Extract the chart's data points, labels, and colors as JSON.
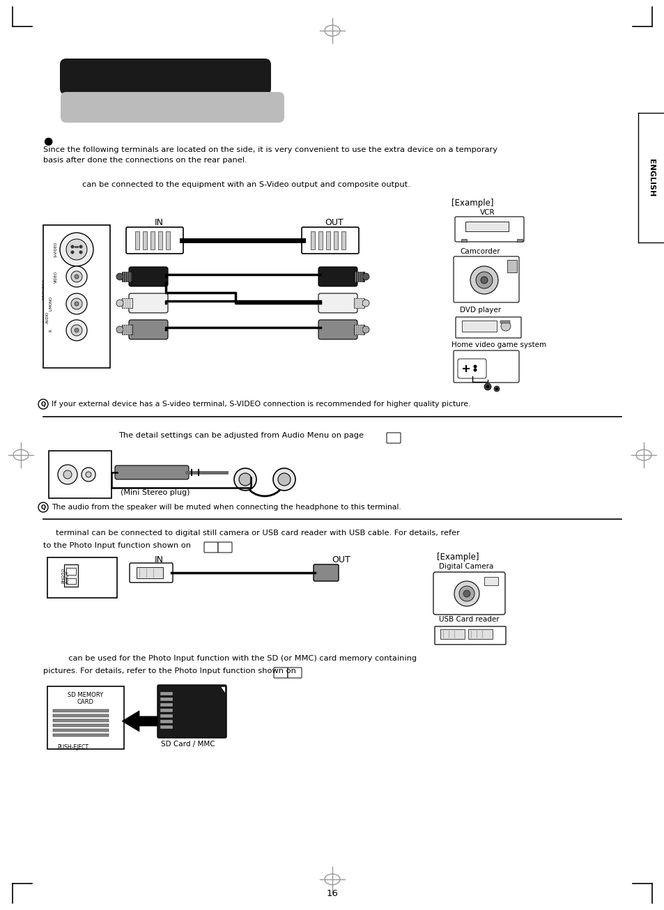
{
  "page_bg": "#ffffff",
  "page_num": "16",
  "title_bar_color": "#1a1a1a",
  "title_bar2_color": "#bbbbbb",
  "section1_bullet": "●",
  "section1_body": "Since the following terminals are located on the side, it is very convenient to use the extra device on a temporary\nbasis after done the connections on the rear panel.",
  "section1_sub": "     can be connected to the equipment with an S-Video output and composite output.",
  "example_label": "[Example]",
  "vcr_label": "VCR",
  "camcorder_label": "Camcorder",
  "dvd_label": "DVD player",
  "game_label": "Home video game system",
  "in_label": "IN",
  "out_label": "OUT",
  "tip1_text": "If your external device has a S-video terminal, S-VIDEO connection is recommended for higher quality picture.",
  "section2_sub": "The detail settings can be adjusted from Audio Menu on page",
  "mini_stereo_label": "(Mini Stereo plug)",
  "tip2_text": "The audio from the speaker will be muted when connecting the headphone to this terminal.",
  "section3_line1": "     terminal can be connected to digital still camera or USB card reader with USB cable. For details, refer",
  "section3_line2": "to the Photo Input function shown on",
  "example2_label": "[Example]",
  "digital_camera_label": "Digital Camera",
  "usb_card_label": "USB Card reader",
  "in2_label": "IN",
  "out2_label": "OUT",
  "section4_line1": "          can be used for the Photo Input function with the SD (or MMC) card memory containing",
  "section4_line2": "pictures. For details, refer to the Photo Input function shown on",
  "sd_memory_label1": "SD MEMORY",
  "sd_memory_label2": "CARD",
  "push_eject_label": "PUSH-EJECT",
  "sd_card_label": "SD Card / MMC",
  "english_text": "ENGLISH"
}
